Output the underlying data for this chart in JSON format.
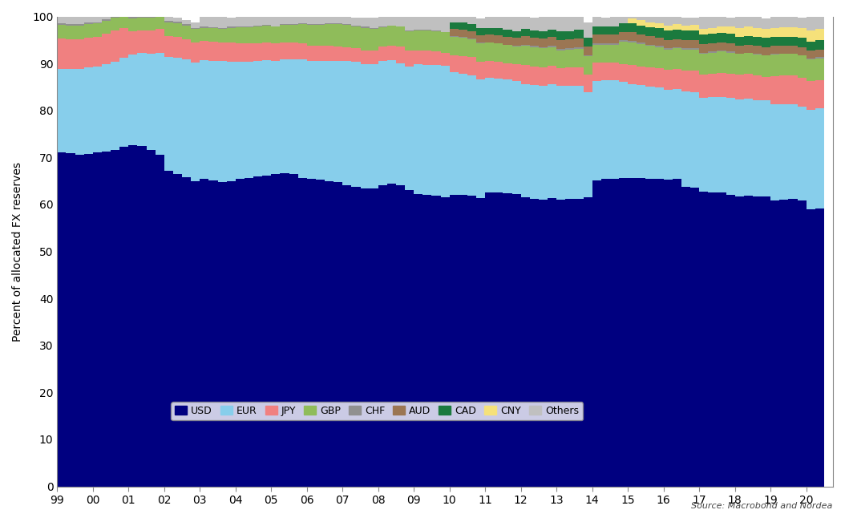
{
  "quarters": [
    1999.0,
    1999.25,
    1999.5,
    1999.75,
    2000.0,
    2000.25,
    2000.5,
    2000.75,
    2001.0,
    2001.25,
    2001.5,
    2001.75,
    2002.0,
    2002.25,
    2002.5,
    2002.75,
    2003.0,
    2003.25,
    2003.5,
    2003.75,
    2004.0,
    2004.25,
    2004.5,
    2004.75,
    2005.0,
    2005.25,
    2005.5,
    2005.75,
    2006.0,
    2006.25,
    2006.5,
    2006.75,
    2007.0,
    2007.25,
    2007.5,
    2007.75,
    2008.0,
    2008.25,
    2008.5,
    2008.75,
    2009.0,
    2009.25,
    2009.5,
    2009.75,
    2010.0,
    2010.25,
    2010.5,
    2010.75,
    2011.0,
    2011.25,
    2011.5,
    2011.75,
    2012.0,
    2012.25,
    2012.5,
    2012.75,
    2013.0,
    2013.25,
    2013.5,
    2013.75,
    2014.0,
    2014.25,
    2014.5,
    2014.75,
    2015.0,
    2015.25,
    2015.5,
    2015.75,
    2016.0,
    2016.25,
    2016.5,
    2016.75,
    2017.0,
    2017.25,
    2017.5,
    2017.75,
    2018.0,
    2018.25,
    2018.5,
    2018.75,
    2019.0,
    2019.25,
    2019.5,
    2019.75,
    2020.0,
    2020.25,
    2020.5
  ],
  "USD": [
    71.0,
    70.9,
    70.5,
    70.7,
    71.1,
    71.3,
    71.6,
    72.2,
    72.7,
    72.4,
    71.6,
    70.5,
    67.1,
    66.4,
    65.8,
    65.0,
    65.4,
    65.1,
    64.8,
    65.0,
    65.5,
    65.7,
    66.0,
    66.2,
    66.5,
    66.7,
    66.4,
    65.7,
    65.5,
    65.2,
    64.9,
    64.7,
    64.1,
    63.8,
    63.4,
    63.4,
    64.1,
    64.5,
    64.0,
    63.0,
    62.2,
    62.0,
    61.8,
    61.6,
    62.1,
    62.0,
    61.8,
    61.4,
    62.6,
    62.5,
    62.4,
    62.2,
    61.5,
    61.2,
    61.0,
    61.3,
    61.0,
    61.1,
    61.2,
    61.6,
    65.1,
    65.4,
    65.5,
    65.7,
    65.7,
    65.6,
    65.4,
    65.5,
    65.3,
    65.4,
    63.8,
    63.5,
    62.7,
    62.6,
    62.5,
    62.1,
    61.7,
    61.8,
    61.7,
    61.7,
    60.9,
    61.0,
    61.1,
    60.8,
    59.0,
    59.2,
    60.5
  ],
  "EUR": [
    17.9,
    18.0,
    18.3,
    18.5,
    18.3,
    18.5,
    18.8,
    19.0,
    19.2,
    19.8,
    20.4,
    21.8,
    24.2,
    24.8,
    25.0,
    25.2,
    25.3,
    25.5,
    25.7,
    25.4,
    24.9,
    24.7,
    24.5,
    24.5,
    24.0,
    24.2,
    24.4,
    25.1,
    25.1,
    25.4,
    25.7,
    25.9,
    26.5,
    26.5,
    26.5,
    26.4,
    26.4,
    26.2,
    26.1,
    26.4,
    27.6,
    27.7,
    27.8,
    27.9,
    26.0,
    25.8,
    25.6,
    25.2,
    24.4,
    24.3,
    24.2,
    24.1,
    24.1,
    24.2,
    24.2,
    24.2,
    24.2,
    24.1,
    24.0,
    22.3,
    21.2,
    21.0,
    20.9,
    20.4,
    19.9,
    19.8,
    19.7,
    19.4,
    19.1,
    19.2,
    20.2,
    20.3,
    20.0,
    20.2,
    20.4,
    20.5,
    20.7,
    20.7,
    20.5,
    20.4,
    20.5,
    20.4,
    20.2,
    20.0,
    21.2,
    21.3,
    21.2
  ],
  "JPY": [
    6.4,
    6.3,
    6.4,
    6.3,
    6.3,
    6.5,
    6.6,
    6.4,
    5.0,
    4.8,
    5.0,
    5.0,
    4.5,
    4.4,
    4.3,
    4.3,
    4.1,
    4.0,
    4.0,
    4.1,
    3.9,
    3.8,
    3.7,
    3.7,
    3.7,
    3.6,
    3.6,
    3.5,
    3.2,
    3.1,
    3.1,
    3.0,
    2.9,
    2.9,
    2.9,
    2.9,
    3.1,
    3.1,
    3.5,
    3.3,
    2.9,
    3.0,
    2.9,
    2.8,
    3.7,
    3.8,
    3.9,
    3.8,
    3.6,
    3.6,
    3.5,
    3.5,
    4.1,
    4.0,
    4.0,
    4.0,
    3.8,
    3.9,
    4.0,
    3.8,
    3.9,
    3.8,
    3.8,
    3.8,
    4.0,
    4.0,
    4.0,
    4.1,
    4.2,
    4.2,
    4.5,
    4.7,
    4.9,
    5.0,
    5.1,
    5.2,
    5.2,
    5.3,
    5.2,
    5.1,
    5.9,
    6.0,
    6.1,
    6.2,
    6.0,
    5.9,
    5.8
  ],
  "GBP": [
    2.9,
    2.9,
    2.9,
    2.9,
    2.8,
    2.8,
    2.8,
    2.7,
    2.7,
    2.7,
    2.7,
    2.8,
    2.9,
    2.9,
    2.9,
    2.8,
    2.8,
    2.9,
    2.9,
    3.1,
    3.4,
    3.5,
    3.6,
    3.7,
    3.6,
    3.7,
    3.8,
    4.1,
    4.4,
    4.5,
    4.6,
    4.7,
    4.7,
    4.7,
    4.8,
    4.7,
    4.1,
    4.2,
    4.2,
    4.2,
    4.3,
    4.3,
    4.4,
    4.3,
    3.9,
    3.9,
    3.9,
    3.9,
    3.8,
    3.8,
    3.8,
    3.8,
    4.0,
    4.0,
    4.0,
    4.0,
    3.8,
    3.8,
    3.9,
    3.8,
    3.8,
    3.8,
    3.8,
    4.7,
    4.9,
    4.7,
    4.6,
    4.5,
    4.4,
    4.4,
    4.5,
    4.5,
    4.5,
    4.5,
    4.5,
    4.5,
    4.4,
    4.4,
    4.5,
    4.5,
    4.6,
    4.6,
    4.6,
    4.7,
    4.7,
    4.7,
    4.7
  ],
  "CHF": [
    0.3,
    0.3,
    0.3,
    0.3,
    0.3,
    0.3,
    0.3,
    0.3,
    0.3,
    0.3,
    0.3,
    0.4,
    0.4,
    0.4,
    0.4,
    0.3,
    0.2,
    0.2,
    0.2,
    0.2,
    0.2,
    0.2,
    0.2,
    0.1,
    0.1,
    0.1,
    0.1,
    0.2,
    0.2,
    0.2,
    0.2,
    0.2,
    0.2,
    0.2,
    0.2,
    0.2,
    0.1,
    0.1,
    0.1,
    0.1,
    0.1,
    0.1,
    0.1,
    0.1,
    0.1,
    0.1,
    0.1,
    0.1,
    0.1,
    0.1,
    0.1,
    0.1,
    0.3,
    0.3,
    0.3,
    0.3,
    0.3,
    0.3,
    0.3,
    0.3,
    0.3,
    0.3,
    0.3,
    0.3,
    0.3,
    0.3,
    0.3,
    0.2,
    0.2,
    0.2,
    0.2,
    0.2,
    0.2,
    0.2,
    0.2,
    0.2,
    0.1,
    0.1,
    0.1,
    0.1,
    0.1,
    0.1,
    0.1,
    0.1,
    0.2,
    0.2,
    0.2
  ],
  "AUD": [
    0.0,
    0.0,
    0.0,
    0.0,
    0.0,
    0.0,
    0.0,
    0.0,
    0.0,
    0.0,
    0.0,
    0.0,
    0.0,
    0.0,
    0.0,
    0.0,
    0.0,
    0.0,
    0.0,
    0.0,
    0.0,
    0.0,
    0.0,
    0.0,
    0.0,
    0.0,
    0.0,
    0.0,
    0.0,
    0.0,
    0.0,
    0.0,
    0.0,
    0.0,
    0.0,
    0.0,
    0.0,
    0.0,
    0.0,
    0.0,
    0.0,
    0.0,
    0.0,
    0.0,
    1.5,
    1.6,
    1.6,
    1.6,
    1.6,
    1.7,
    1.7,
    1.7,
    1.8,
    1.8,
    1.8,
    1.8,
    1.9,
    1.9,
    1.9,
    1.8,
    1.8,
    1.8,
    1.8,
    1.8,
    1.8,
    1.8,
    1.8,
    1.8,
    1.8,
    1.8,
    1.8,
    1.8,
    1.8,
    1.8,
    1.8,
    1.8,
    1.7,
    1.7,
    1.7,
    1.7,
    1.7,
    1.7,
    1.7,
    1.6,
    1.6,
    1.7,
    1.7
  ],
  "CAD": [
    0.0,
    0.0,
    0.0,
    0.0,
    0.0,
    0.0,
    0.0,
    0.0,
    0.0,
    0.0,
    0.0,
    0.0,
    0.0,
    0.0,
    0.0,
    0.0,
    0.0,
    0.0,
    0.0,
    0.0,
    0.0,
    0.0,
    0.0,
    0.0,
    0.0,
    0.0,
    0.0,
    0.0,
    0.0,
    0.0,
    0.0,
    0.0,
    0.0,
    0.0,
    0.0,
    0.0,
    0.0,
    0.0,
    0.0,
    0.0,
    0.0,
    0.0,
    0.0,
    0.0,
    1.4,
    1.5,
    1.5,
    1.5,
    1.4,
    1.5,
    1.5,
    1.5,
    1.5,
    1.5,
    1.5,
    1.6,
    1.8,
    1.8,
    1.8,
    1.8,
    1.8,
    1.8,
    1.8,
    1.9,
    1.9,
    1.9,
    1.9,
    2.0,
    2.0,
    2.0,
    2.0,
    2.0,
    2.0,
    2.0,
    2.0,
    2.0,
    1.9,
    1.9,
    1.9,
    1.9,
    1.9,
    1.9,
    1.9,
    2.0,
    2.0,
    2.0,
    2.0
  ],
  "CNY": [
    0.0,
    0.0,
    0.0,
    0.0,
    0.0,
    0.0,
    0.0,
    0.0,
    0.0,
    0.0,
    0.0,
    0.0,
    0.0,
    0.0,
    0.0,
    0.0,
    0.0,
    0.0,
    0.0,
    0.0,
    0.0,
    0.0,
    0.0,
    0.0,
    0.0,
    0.0,
    0.0,
    0.0,
    0.0,
    0.0,
    0.0,
    0.0,
    0.0,
    0.0,
    0.0,
    0.0,
    0.0,
    0.0,
    0.0,
    0.0,
    0.0,
    0.0,
    0.0,
    0.0,
    0.0,
    0.0,
    0.0,
    0.0,
    0.0,
    0.0,
    0.0,
    0.0,
    0.0,
    0.0,
    0.0,
    0.0,
    0.0,
    0.0,
    0.0,
    0.0,
    0.0,
    0.0,
    0.0,
    0.0,
    1.1,
    1.1,
    1.1,
    1.1,
    1.1,
    1.1,
    1.1,
    1.2,
    1.2,
    1.2,
    1.4,
    1.6,
    1.9,
    1.9,
    2.0,
    2.0,
    2.0,
    2.0,
    2.0,
    2.1,
    2.3,
    2.3,
    2.4
  ],
  "Others": [
    1.5,
    1.6,
    1.6,
    1.3,
    1.2,
    0.6,
    0.5,
    0.6,
    0.1,
    0.2,
    0.0,
    0.0,
    0.9,
    0.8,
    0.9,
    1.1,
    2.2,
    2.3,
    2.4,
    2.0,
    2.1,
    2.1,
    2.0,
    1.8,
    2.1,
    1.7,
    1.7,
    1.4,
    1.6,
    1.6,
    1.5,
    1.5,
    1.6,
    1.7,
    1.9,
    2.1,
    2.2,
    1.9,
    2.1,
    3.0,
    2.9,
    2.9,
    3.0,
    3.3,
    1.3,
    1.3,
    1.6,
    2.0,
    2.5,
    2.5,
    2.8,
    3.1,
    2.7,
    2.7,
    3.1,
    2.8,
    3.2,
    3.0,
    2.9,
    3.4,
    2.1,
    1.9,
    2.1,
    1.4,
    0.4,
    0.8,
    1.2,
    1.4,
    1.9,
    1.7,
    1.7,
    1.6,
    2.7,
    2.5,
    2.1,
    1.9,
    2.4,
    2.1,
    2.3,
    2.2,
    2.4,
    2.3,
    2.3,
    2.3,
    3.0,
    2.9,
    2.5
  ],
  "colors": {
    "USD": "#000080",
    "EUR": "#87CEEB",
    "JPY": "#F08080",
    "GBP": "#8FBC5A",
    "CHF": "#909090",
    "AUD": "#9B7653",
    "CAD": "#1B7A3E",
    "CNY": "#F5E17A",
    "Others": "#C0C0C0"
  },
  "ylabel": "Percent of allocated FX reserves",
  "source": "Source: Macrobond and Nordea",
  "ylim": [
    0,
    100
  ],
  "yticks": [
    0,
    10,
    20,
    30,
    40,
    50,
    60,
    70,
    80,
    90,
    100
  ],
  "xtick_years": [
    1999,
    2000,
    2001,
    2002,
    2003,
    2004,
    2005,
    2006,
    2007,
    2008,
    2009,
    2010,
    2011,
    2012,
    2013,
    2014,
    2015,
    2016,
    2017,
    2018,
    2019,
    2020
  ]
}
